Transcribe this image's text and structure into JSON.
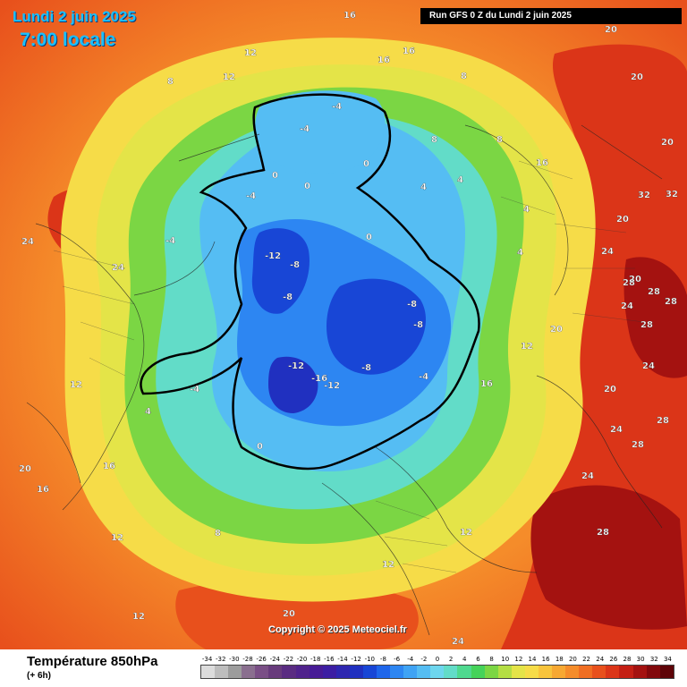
{
  "header": {
    "date": "Lundi 2 juin 2025",
    "time": "7:00 locale",
    "run": "Run GFS 0 Z du Lundi 2 juin 2025"
  },
  "footer": {
    "title": "Température 850hPa",
    "subtitle": "(+ 6h)",
    "copyright": "Copyright © 2025 Meteociel.fr"
  },
  "legend": {
    "labels": [
      "-34",
      "-32",
      "-30",
      "-28",
      "-26",
      "-24",
      "-22",
      "-20",
      "-18",
      "-16",
      "-14",
      "-12",
      "-10",
      "-8",
      "-6",
      "-4",
      "-2",
      "0",
      "2",
      "4",
      "6",
      "8",
      "10",
      "12",
      "14",
      "16",
      "18",
      "20",
      "22",
      "24",
      "26",
      "28",
      "30",
      "32",
      "34"
    ],
    "colors": [
      "#dcdcdc",
      "#bdbdbd",
      "#9c9c9c",
      "#8a6f8f",
      "#7a4f86",
      "#683b7c",
      "#5a2c82",
      "#50238c",
      "#471b96",
      "#3c1ea3",
      "#2e27b0",
      "#2030c0",
      "#1846d6",
      "#1f66ea",
      "#2d86f2",
      "#3fa3f4",
      "#55bdf3",
      "#6dd6ee",
      "#62dcc8",
      "#4fd98f",
      "#45d35a",
      "#7bd644",
      "#b4de44",
      "#e4e448",
      "#f6dc48",
      "#f8c43c",
      "#f7a832",
      "#f58c2a",
      "#f06e22",
      "#e8501c",
      "#db3518",
      "#c41f14",
      "#a41210",
      "#82090c",
      "#5e0408"
    ]
  },
  "map_labels": [
    {
      "text": "-12"
    },
    {
      "text": "-8"
    },
    {
      "text": "-8"
    },
    {
      "text": "-8"
    },
    {
      "text": "-8"
    },
    {
      "text": "-12"
    },
    {
      "text": "-16"
    },
    {
      "text": "-12"
    },
    {
      "text": "-8"
    },
    {
      "text": "-4"
    },
    {
      "text": "-4"
    },
    {
      "text": "-4"
    },
    {
      "text": "-4"
    },
    {
      "text": "-4"
    },
    {
      "text": "-4"
    },
    {
      "text": "0"
    },
    {
      "text": "0"
    },
    {
      "text": "0"
    },
    {
      "text": "0"
    },
    {
      "text": "0"
    },
    {
      "text": "4"
    },
    {
      "text": "4"
    },
    {
      "text": "4"
    },
    {
      "text": "4"
    },
    {
      "text": "4"
    },
    {
      "text": "8"
    },
    {
      "text": "8"
    },
    {
      "text": "8"
    },
    {
      "text": "8"
    },
    {
      "text": "8"
    },
    {
      "text": "12"
    },
    {
      "text": "12"
    },
    {
      "text": "12"
    },
    {
      "text": "12"
    },
    {
      "text": "12"
    },
    {
      "text": "12"
    },
    {
      "text": "12"
    },
    {
      "text": "12"
    },
    {
      "text": "16"
    },
    {
      "text": "16"
    },
    {
      "text": "16"
    },
    {
      "text": "16"
    },
    {
      "text": "16"
    },
    {
      "text": "16"
    },
    {
      "text": "16"
    },
    {
      "text": "20"
    },
    {
      "text": "20"
    },
    {
      "text": "20"
    },
    {
      "text": "20"
    },
    {
      "text": "20"
    },
    {
      "text": "20"
    },
    {
      "text": "20"
    },
    {
      "text": "20"
    },
    {
      "text": "24"
    },
    {
      "text": "24"
    },
    {
      "text": "24"
    },
    {
      "text": "24"
    },
    {
      "text": "24"
    },
    {
      "text": "24"
    },
    {
      "text": "24"
    },
    {
      "text": "28"
    },
    {
      "text": "28"
    },
    {
      "text": "28"
    },
    {
      "text": "28"
    },
    {
      "text": "28"
    },
    {
      "text": "28"
    },
    {
      "text": "28"
    },
    {
      "text": "32"
    },
    {
      "text": "32"
    },
    {
      "text": "20"
    },
    {
      "text": "24"
    }
  ]
}
